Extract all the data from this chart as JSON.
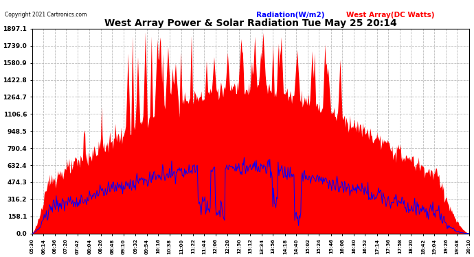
{
  "title": "West Array Power & Solar Radiation Tue May 25 20:14",
  "copyright": "Copyright 2021 Cartronics.com",
  "legend_radiation": "Radiation(W/m2)",
  "legend_west_array": "West Array(DC Watts)",
  "y_ticks": [
    0.0,
    158.1,
    316.2,
    474.3,
    632.4,
    790.4,
    948.5,
    1106.6,
    1264.7,
    1422.8,
    1580.9,
    1739.0,
    1897.1
  ],
  "ymax": 1897.1,
  "ymin": 0.0,
  "x_labels": [
    "05:30",
    "06:14",
    "06:36",
    "07:20",
    "07:42",
    "08:04",
    "08:26",
    "08:48",
    "09:10",
    "09:32",
    "09:54",
    "10:16",
    "10:38",
    "11:00",
    "11:22",
    "11:44",
    "12:06",
    "12:28",
    "12:50",
    "13:12",
    "13:34",
    "13:56",
    "14:18",
    "14:40",
    "15:02",
    "15:24",
    "15:46",
    "16:08",
    "16:30",
    "16:52",
    "17:14",
    "17:36",
    "17:58",
    "18:20",
    "18:42",
    "19:04",
    "19:26",
    "19:48",
    "20:10"
  ],
  "background_color": "#ffffff",
  "plot_bg_color": "#ffffff",
  "grid_color": "#aaaaaa",
  "red_fill_color": "#ff0000",
  "blue_line_color": "#0000ff",
  "title_color": "#000000",
  "copyright_color": "#000000",
  "radiation_color": "#0000ff",
  "west_array_color": "#ff0000",
  "n_points": 580
}
